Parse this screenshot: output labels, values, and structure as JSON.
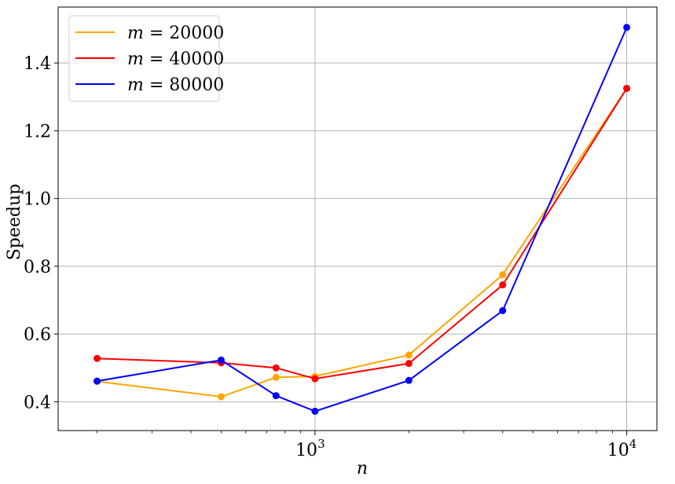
{
  "chart_data": {
    "type": "line",
    "xlabel": "n",
    "ylabel": "Speedup",
    "x_scale": "log",
    "xlim": [
      150,
      12500
    ],
    "ylim": [
      0.315,
      1.565
    ],
    "x_major_ticks": [
      1000,
      10000
    ],
    "x_major_tick_labels": [
      {
        "base": "10",
        "exp": "3"
      },
      {
        "base": "10",
        "exp": "4"
      }
    ],
    "y_ticks": [
      0.4,
      0.6,
      0.8,
      1.0,
      1.2,
      1.4
    ],
    "y_tick_labels": [
      "0.4",
      "0.6",
      "0.8",
      "1.0",
      "1.2",
      "1.4"
    ],
    "grid": true,
    "legend_position": "top-left",
    "x": [
      200,
      500,
      750,
      1000,
      2000,
      4000,
      10000
    ],
    "series": [
      {
        "name": "m = 20000",
        "var": "m",
        "value": "20000",
        "color": "#FFA500",
        "values": [
          0.46,
          0.415,
          0.472,
          0.475,
          0.538,
          0.775,
          1.325
        ]
      },
      {
        "name": "m = 40000",
        "var": "m",
        "value": "40000",
        "color": "#FF0000",
        "values": [
          0.528,
          0.515,
          0.5,
          0.468,
          0.513,
          0.745,
          1.325
        ]
      },
      {
        "name": "m = 80000",
        "var": "m",
        "value": "80000",
        "color": "#0000FF",
        "values": [
          0.461,
          0.523,
          0.418,
          0.372,
          0.463,
          0.669,
          1.505
        ]
      }
    ]
  }
}
